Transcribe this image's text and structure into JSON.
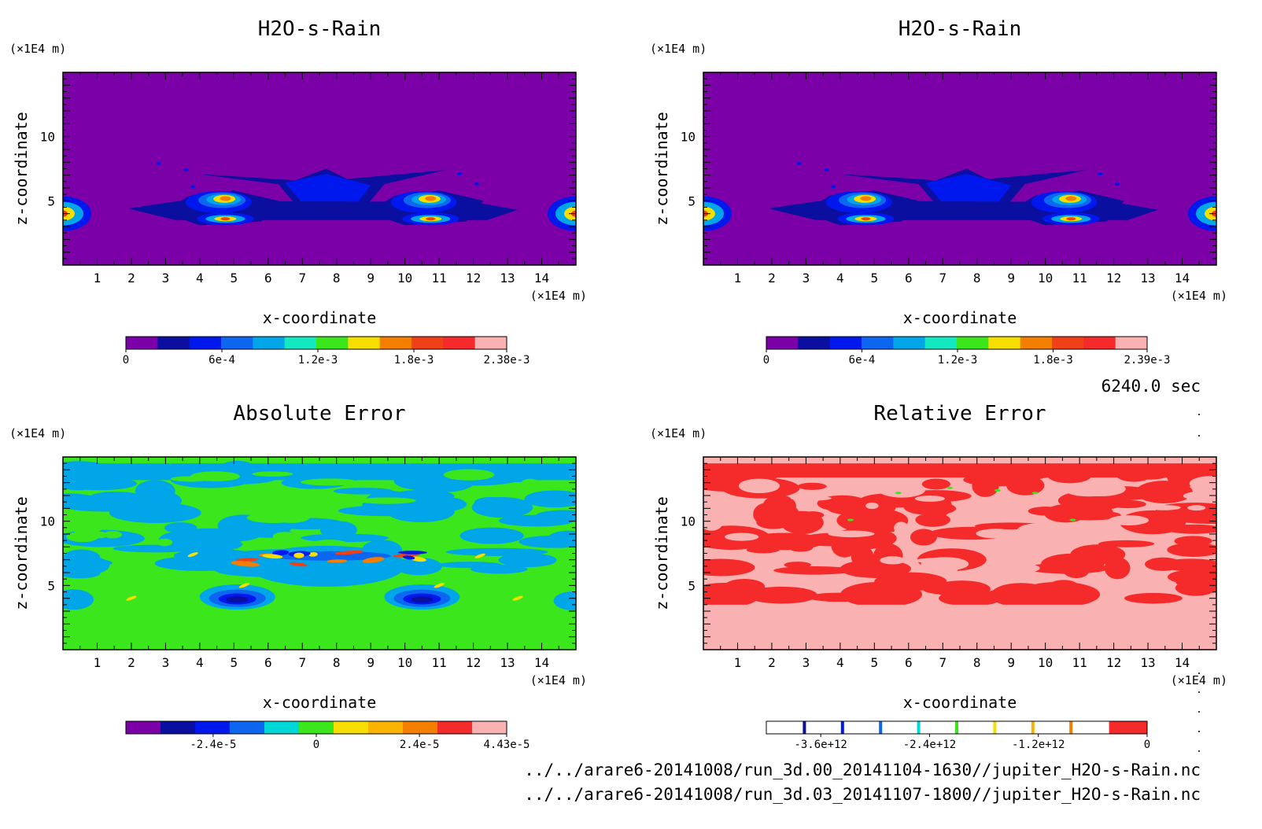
{
  "time_label": "6240.0 sec",
  "file_paths": [
    "../../arare6-20141008/run_3d.00_20141104-1630//jupiter_H2O-s-Rain.nc",
    "../../arare6-20141008/run_3d.03_20141107-1800//jupiter_H2O-s-Rain.nc"
  ],
  "colors": {
    "purple": "#7c00a8",
    "navy": "#0a0fa0",
    "blue": "#0018ee",
    "mid_blue": "#0c66f0",
    "sky": "#00a6e8",
    "cyan": "#00d8d8",
    "aqua": "#13e8c0",
    "green": "#3ce61c",
    "yellow": "#f6de00",
    "gold": "#f8b400",
    "orange": "#f47e00",
    "red_orange": "#f04018",
    "red": "#f52a2a",
    "pink": "#fab1b1",
    "white": "#ffffff"
  },
  "chart_data": [
    {
      "type": "heatmap",
      "title": "H2O-s-Rain",
      "xlabel": "x-coordinate",
      "ylabel": "z-coordinate",
      "x_unit": "(×1E4 m)",
      "y_unit": "(×1E4 m)",
      "xlim": [
        0,
        15
      ],
      "ylim": [
        0,
        15
      ],
      "x_ticks": [
        "1",
        "2",
        "3",
        "4",
        "5",
        "6",
        "7",
        "8",
        "9",
        "10",
        "11",
        "12",
        "13",
        "14"
      ],
      "y_ticks": [
        "5",
        "10"
      ],
      "colorbar_labels": [
        "0",
        "6e-4",
        "1.2e-3",
        "1.8e-3",
        "2.38e-3"
      ],
      "colorbar_colors": [
        "#7c00a8",
        "#0a0fa0",
        "#0018ee",
        "#0c66f0",
        "#00a6e8",
        "#13e8c0",
        "#3ce61c",
        "#f6de00",
        "#f47e00",
        "#f04018",
        "#f52a2a",
        "#fab1b1"
      ],
      "colorbar_range": [
        0,
        0.00238
      ]
    },
    {
      "type": "heatmap",
      "title": "H2O-s-Rain",
      "xlabel": "x-coordinate",
      "ylabel": "z-coordinate",
      "x_unit": "(×1E4 m)",
      "y_unit": "(×1E4 m)",
      "xlim": [
        0,
        15
      ],
      "ylim": [
        0,
        15
      ],
      "x_ticks": [
        "1",
        "2",
        "3",
        "4",
        "5",
        "6",
        "7",
        "8",
        "9",
        "10",
        "11",
        "12",
        "13",
        "14"
      ],
      "y_ticks": [
        "5",
        "10"
      ],
      "colorbar_labels": [
        "0",
        "6e-4",
        "1.2e-3",
        "1.8e-3",
        "2.39e-3"
      ],
      "colorbar_colors": [
        "#7c00a8",
        "#0a0fa0",
        "#0018ee",
        "#0c66f0",
        "#00a6e8",
        "#13e8c0",
        "#3ce61c",
        "#f6de00",
        "#f47e00",
        "#f04018",
        "#f52a2a",
        "#fab1b1"
      ],
      "colorbar_range": [
        0,
        0.00239
      ]
    },
    {
      "type": "heatmap",
      "title": "Absolute Error",
      "xlabel": "x-coordinate",
      "ylabel": "z-coordinate",
      "x_unit": "(×1E4 m)",
      "y_unit": "(×1E4 m)",
      "xlim": [
        0,
        15
      ],
      "ylim": [
        0,
        15
      ],
      "x_ticks": [
        "1",
        "2",
        "3",
        "4",
        "5",
        "6",
        "7",
        "8",
        "9",
        "10",
        "11",
        "12",
        "13",
        "14"
      ],
      "y_ticks": [
        "5",
        "10"
      ],
      "colorbar_labels": [
        "-2.4e-5",
        "0",
        "2.4e-5",
        "4.43e-5"
      ],
      "colorbar_colors": [
        "#7c00a8",
        "#0a0fa0",
        "#0018ee",
        "#0c66f0",
        "#00d8d8",
        "#3ce61c",
        "#f6de00",
        "#f8b400",
        "#f47e00",
        "#f52a2a",
        "#fab1b1"
      ],
      "colorbar_range": [
        -4.43e-05,
        4.43e-05
      ]
    },
    {
      "type": "heatmap",
      "title": "Relative Error",
      "xlabel": "x-coordinate",
      "ylabel": "z-coordinate",
      "x_unit": "(×1E4 m)",
      "y_unit": "(×1E4 m)",
      "xlim": [
        0,
        15
      ],
      "ylim": [
        0,
        15
      ],
      "x_ticks": [
        "1",
        "2",
        "3",
        "4",
        "5",
        "6",
        "7",
        "8",
        "9",
        "10",
        "11",
        "12",
        "13",
        "14"
      ],
      "y_ticks": [
        "5",
        "10"
      ],
      "colorbar_labels": [
        "-3.6e+12",
        "-2.4e+12",
        "-1.2e+12",
        "0"
      ],
      "colorbar_colors": [
        "#0a0fa0",
        "#0018ee",
        "#0c66f0",
        "#00d8d8",
        "#3ce61c",
        "#f6de00",
        "#f8b400",
        "#f47e00",
        "#f52a2a"
      ],
      "colorbar_range": [
        -4200000000000.0,
        0
      ]
    }
  ]
}
